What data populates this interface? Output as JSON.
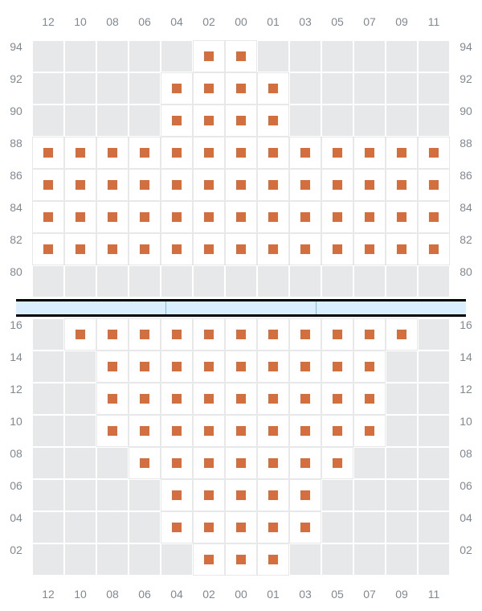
{
  "layout": {
    "cell_size": 40,
    "cols": 13,
    "column_headers": [
      "12",
      "10",
      "08",
      "06",
      "04",
      "02",
      "00",
      "01",
      "03",
      "05",
      "07",
      "09",
      "11"
    ],
    "seat_fill": "#ffffff",
    "seat_border": "#e7e8e9",
    "empty_fill": "#e7e8e9",
    "marker_color": "#d36f3e",
    "marker_size": 12,
    "label_color": "#808891",
    "label_fontsize": 14,
    "divider_fill": "#d9efff",
    "divider_border": "#000000",
    "divider_segments": 3
  },
  "top_section": {
    "row_labels": [
      "94",
      "92",
      "90",
      "88",
      "86",
      "84",
      "82",
      "80"
    ],
    "seat_mask": [
      [
        0,
        0,
        0,
        0,
        0,
        1,
        1,
        0,
        0,
        0,
        0,
        0,
        0
      ],
      [
        0,
        0,
        0,
        0,
        1,
        1,
        1,
        1,
        0,
        0,
        0,
        0,
        0
      ],
      [
        0,
        0,
        0,
        0,
        1,
        1,
        1,
        1,
        0,
        0,
        0,
        0,
        0
      ],
      [
        1,
        1,
        1,
        1,
        1,
        1,
        1,
        1,
        1,
        1,
        1,
        1,
        1
      ],
      [
        1,
        1,
        1,
        1,
        1,
        1,
        1,
        1,
        1,
        1,
        1,
        1,
        1
      ],
      [
        1,
        1,
        1,
        1,
        1,
        1,
        1,
        1,
        1,
        1,
        1,
        1,
        1
      ],
      [
        1,
        1,
        1,
        1,
        1,
        1,
        1,
        1,
        1,
        1,
        1,
        1,
        1
      ],
      [
        0,
        0,
        0,
        0,
        0,
        0,
        0,
        0,
        0,
        0,
        0,
        0,
        0
      ]
    ]
  },
  "bottom_section": {
    "row_labels": [
      "16",
      "14",
      "12",
      "10",
      "08",
      "06",
      "04",
      "02"
    ],
    "seat_mask": [
      [
        0,
        1,
        1,
        1,
        1,
        1,
        1,
        1,
        1,
        1,
        1,
        1,
        0
      ],
      [
        0,
        0,
        1,
        1,
        1,
        1,
        1,
        1,
        1,
        1,
        1,
        0,
        0
      ],
      [
        0,
        0,
        1,
        1,
        1,
        1,
        1,
        1,
        1,
        1,
        1,
        0,
        0
      ],
      [
        0,
        0,
        1,
        1,
        1,
        1,
        1,
        1,
        1,
        1,
        1,
        0,
        0
      ],
      [
        0,
        0,
        0,
        1,
        1,
        1,
        1,
        1,
        1,
        1,
        0,
        0,
        0
      ],
      [
        0,
        0,
        0,
        0,
        1,
        1,
        1,
        1,
        1,
        0,
        0,
        0,
        0
      ],
      [
        0,
        0,
        0,
        0,
        1,
        1,
        1,
        1,
        1,
        0,
        0,
        0,
        0
      ],
      [
        0,
        0,
        0,
        0,
        0,
        1,
        1,
        1,
        0,
        0,
        0,
        0,
        0
      ]
    ]
  }
}
